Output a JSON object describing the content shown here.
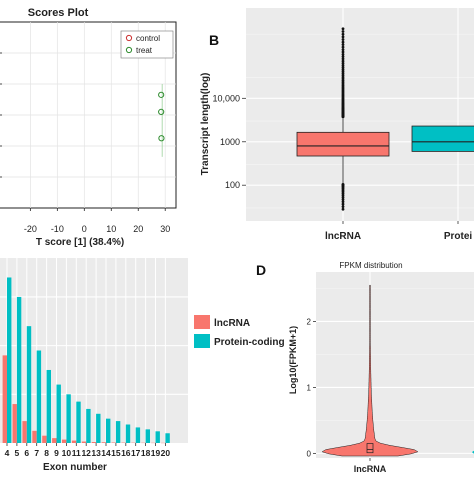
{
  "panels": {
    "A": {
      "letter": ""
    },
    "B": {
      "letter": "B"
    },
    "C": {
      "letter": ""
    },
    "D": {
      "letter": "D"
    }
  },
  "chart_data": [
    {
      "panel": "A",
      "type": "scatter",
      "title": "Scores Plot",
      "xlabel": "T score [1] (38.4%)",
      "ylabel": "",
      "xlim": [
        -32,
        34
      ],
      "ylim": [
        -3,
        3
      ],
      "x_ticks": [
        -20,
        -10,
        0,
        10,
        20,
        30
      ],
      "grid": true,
      "legend_position": "top-right",
      "legend": [
        "control",
        "treat"
      ],
      "colors": {
        "control": "#cc3333",
        "treat": "#2e8b2e"
      },
      "series": [
        {
          "name": "treat",
          "points": [
            [
              28.5,
              0.65
            ],
            [
              28.5,
              0.1
            ],
            [
              28.6,
              -0.75
            ]
          ]
        }
      ]
    },
    {
      "panel": "B",
      "type": "box",
      "title": "",
      "xlabel": "",
      "ylabel": "Transcript length(log)",
      "y_scale": "log",
      "y_ticks": [
        100,
        1000,
        10000
      ],
      "y_tick_labels": [
        "100",
        "1000",
        "10,000"
      ],
      "categories": [
        "lncRNA",
        "Protein-coding"
      ],
      "category_labels": [
        "lncRNA",
        "Protei"
      ],
      "colors": [
        "#f8766d",
        "#00bfc4"
      ],
      "boxes": [
        {
          "name": "lncRNA",
          "q1": 470,
          "median": 800,
          "q3": 1650,
          "whisker_low": 110,
          "whisker_high": 3600,
          "max": 400000,
          "min": 28
        },
        {
          "name": "Protein-coding",
          "q1": 600,
          "median": 1000,
          "q3": 2300
        }
      ]
    },
    {
      "panel": "C",
      "type": "bar",
      "title": "",
      "xlabel": "Exon number",
      "ylabel": "",
      "categories": [
        "4",
        "5",
        "6",
        "7",
        "8",
        "9",
        "10",
        "11",
        "12",
        "13",
        "14",
        "15",
        "16",
        "17",
        "18",
        "19",
        "20"
      ],
      "legend": [
        "lncRNA",
        "Protein-coding"
      ],
      "legend_position": "right",
      "colors": [
        "#f8766d",
        "#00bfc4"
      ],
      "grid": true,
      "series": [
        {
          "name": "lncRNA",
          "values": [
            0.18,
            0.08,
            0.045,
            0.025,
            0.015,
            0.01,
            0.007,
            0.005,
            0.003,
            0.002,
            0.0015,
            0.001,
            0.0008,
            0.0006,
            0.0005,
            0.0004,
            0.0003
          ]
        },
        {
          "name": "Protein-coding",
          "values": [
            0.34,
            0.3,
            0.24,
            0.19,
            0.15,
            0.12,
            0.1,
            0.085,
            0.07,
            0.06,
            0.05,
            0.045,
            0.038,
            0.032,
            0.028,
            0.024,
            0.02
          ]
        }
      ]
    },
    {
      "panel": "D",
      "type": "violin",
      "title": "FPKM distribution",
      "xlabel": "",
      "ylabel": "Log10(FPKM+1)",
      "y_ticks": [
        0,
        1,
        2
      ],
      "categories": [
        "lncRNA"
      ],
      "colors": [
        "#f8766d",
        "#00bfc4"
      ],
      "violin": {
        "name": "lncRNA",
        "q1": 0.01,
        "median": 0.06,
        "q3": 0.15,
        "max": 2.55
      }
    }
  ]
}
